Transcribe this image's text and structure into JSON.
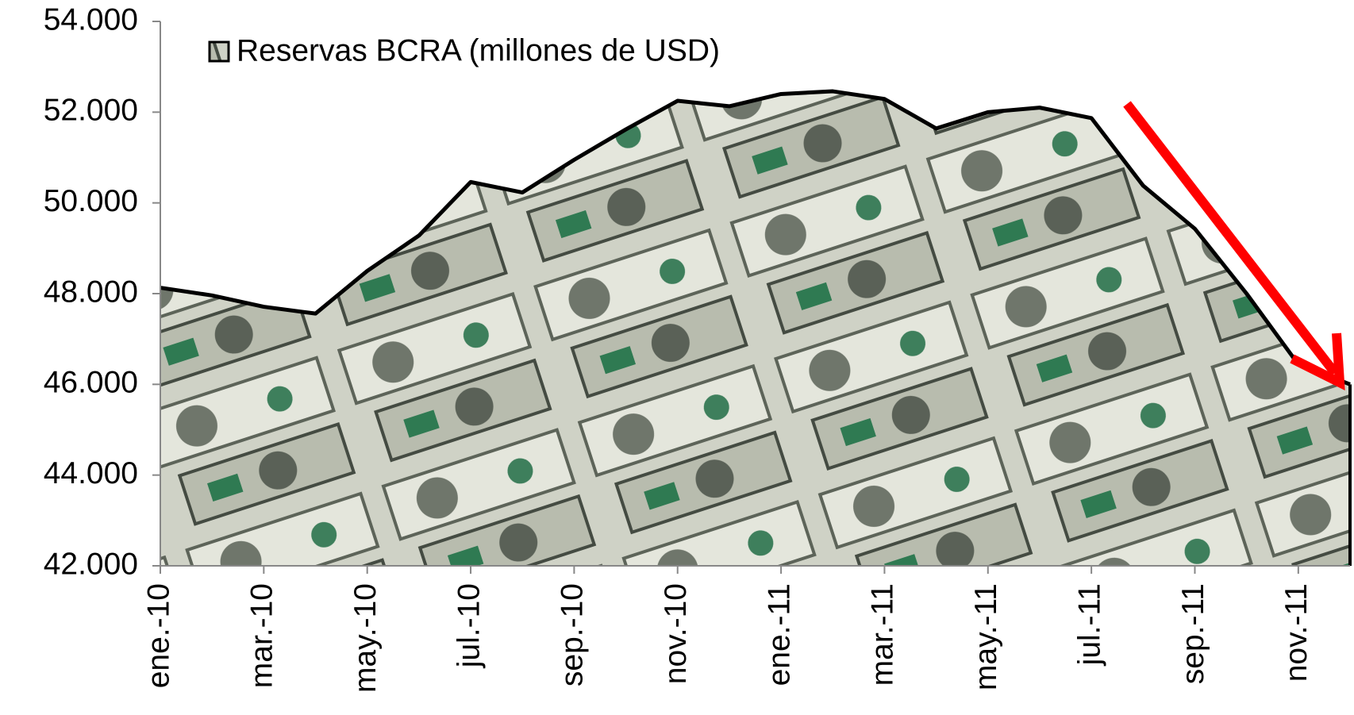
{
  "chart_data": {
    "type": "area",
    "legend": "Reservas BCRA (millones de USD)",
    "categories": [
      "ene.-10",
      null,
      "mar.-10",
      null,
      "may.-10",
      null,
      "jul.-10",
      null,
      "sep.-10",
      null,
      "nov.-10",
      null,
      "ene.-11",
      null,
      "mar.-11",
      null,
      "may.-11",
      null,
      "jul.-11",
      null,
      "sep.-11",
      null,
      "nov.-11",
      null
    ],
    "series": [
      {
        "name": "Reservas BCRA (millones de USD)",
        "color": "#000000",
        "values": [
          48130,
          47960,
          47710,
          47560,
          48500,
          49280,
          50460,
          50230,
          50950,
          51620,
          52250,
          52130,
          52400,
          52460,
          52290,
          51640,
          52000,
          52100,
          51870,
          50380,
          49430,
          48000,
          46440,
          46000
        ]
      }
    ],
    "ylim": [
      42000,
      54000
    ],
    "yticks": [
      {
        "value": 42000,
        "label": "42.000"
      },
      {
        "value": 44000,
        "label": "44.000"
      },
      {
        "value": 46000,
        "label": "46.000"
      },
      {
        "value": 48000,
        "label": "48.000"
      },
      {
        "value": 50000,
        "label": "50.000"
      },
      {
        "value": 52000,
        "label": "52.000"
      },
      {
        "value": 54000,
        "label": "54.000"
      }
    ]
  }
}
